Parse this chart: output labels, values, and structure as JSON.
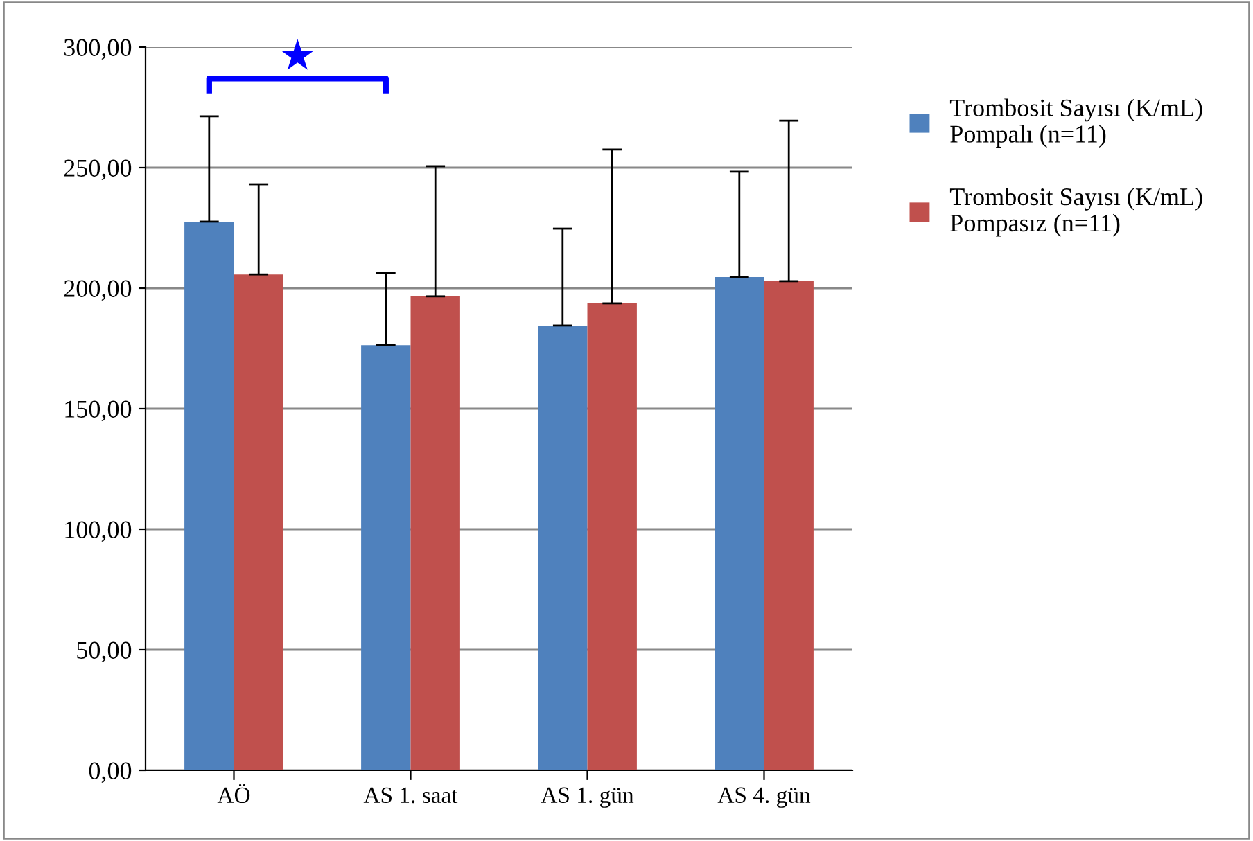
{
  "chart_data": {
    "type": "bar",
    "categories": [
      "AÖ",
      "AS 1. saat",
      "AS 1. gün",
      "AS 4. gün"
    ],
    "series": [
      {
        "name": "Trombosit Sayısı (K/mL)\nPompalı (n=11)",
        "color": "#4f81bd",
        "values": [
          227.6,
          176.4,
          184.5,
          204.6
        ],
        "errors": [
          [
            227.6,
            271.3
          ],
          [
            176.4,
            206.3
          ],
          [
            184.5,
            224.7
          ],
          [
            204.6,
            248.3
          ]
        ]
      },
      {
        "name": "Trombosit Sayısı (K/mL)\nPompasız (n=11)",
        "color": "#c0504d",
        "values": [
          205.7,
          196.6,
          193.7,
          202.9
        ],
        "errors": [
          [
            205.7,
            243.1
          ],
          [
            196.6,
            250.6
          ],
          [
            193.7,
            257.5
          ],
          [
            202.9,
            269.5
          ]
        ]
      }
    ],
    "ylim": [
      0,
      300
    ],
    "yticks": [
      {
        "value": 0,
        "label": "0,00"
      },
      {
        "value": 50,
        "label": "50,00"
      },
      {
        "value": 100,
        "label": "100,00"
      },
      {
        "value": 150,
        "label": "150,00"
      },
      {
        "value": 200,
        "label": "200,00"
      },
      {
        "value": 250,
        "label": "250,00"
      },
      {
        "value": 300,
        "label": "300,00"
      }
    ],
    "grid": "y",
    "legend": "top right",
    "annotations": [
      "★"
    ]
  }
}
